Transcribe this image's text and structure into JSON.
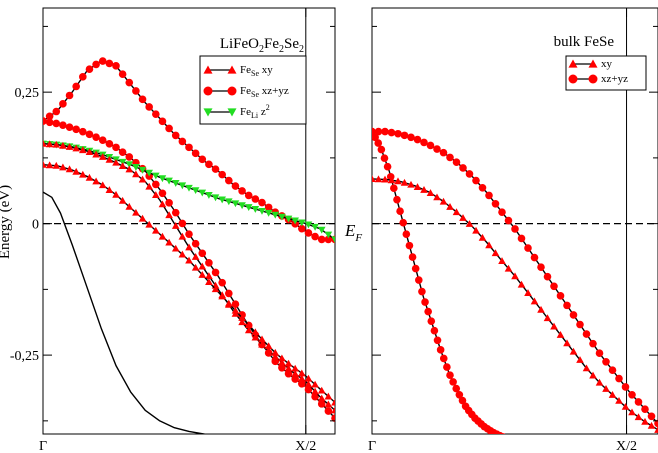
{
  "chart_data": [
    {
      "type": "line",
      "title_parts": {
        "main": "LiFeO",
        "s1": "2",
        "mid": "Fe",
        "s2": "2",
        "tail": "Se",
        "s3": "2"
      },
      "ylabel": "Energy (eV)",
      "ylim": [
        -0.4,
        0.41
      ],
      "xlim": [
        0,
        1
      ],
      "x_ticks": [
        {
          "value": 0,
          "label": "Γ"
        },
        {
          "value": 0.9,
          "label": "X/2"
        }
      ],
      "y_ticks": [
        {
          "value": 0.25,
          "label": "0,25"
        },
        {
          "value": 0,
          "label": "0"
        },
        {
          "value": -0.25,
          "label": "-0,25"
        }
      ],
      "vline_x": 0.9,
      "fermi_level": 0,
      "legend_position": "top-right",
      "legend": [
        {
          "base": "Fe",
          "sub": "Se",
          "sup": "",
          "tail": " xy",
          "marker": "triangle",
          "color": "#ff0000"
        },
        {
          "base": "Fe",
          "sub": "Se",
          "sup": "",
          "tail": " xz+yz",
          "marker": "circle",
          "color": "#ff0000"
        },
        {
          "base": "Fe",
          "sub": "Li",
          "sup": "2",
          "tail": " z",
          "marker": "triangle-down",
          "color": "#22dd22"
        }
      ],
      "series": [
        {
          "marker": "circle",
          "color": "#ff0000",
          "points": [
            [
              0,
              0.195
            ],
            [
              0.05,
              0.215
            ],
            [
              0.1,
              0.25
            ],
            [
              0.15,
              0.29
            ],
            [
              0.2,
              0.31
            ],
            [
              0.25,
              0.3
            ],
            [
              0.3,
              0.265
            ],
            [
              0.35,
              0.23
            ],
            [
              0.4,
              0.2
            ],
            [
              0.45,
              0.17
            ],
            [
              0.5,
              0.145
            ],
            [
              0.55,
              0.12
            ],
            [
              0.6,
              0.1
            ],
            [
              0.65,
              0.075
            ],
            [
              0.7,
              0.055
            ],
            [
              0.75,
              0.04
            ],
            [
              0.8,
              0.02
            ],
            [
              0.85,
              0.005
            ],
            [
              0.9,
              -0.015
            ],
            [
              0.95,
              -0.03
            ],
            [
              1.0,
              -0.03
            ]
          ]
        },
        {
          "marker": "circle",
          "color": "#ff0000",
          "points": [
            [
              0,
              0.195
            ],
            [
              0.05,
              0.19
            ],
            [
              0.1,
              0.182
            ],
            [
              0.15,
              0.172
            ],
            [
              0.2,
              0.16
            ],
            [
              0.25,
              0.145
            ],
            [
              0.3,
              0.125
            ],
            [
              0.35,
              0.1
            ],
            [
              0.4,
              0.065
            ],
            [
              0.45,
              0.025
            ],
            [
              0.5,
              -0.02
            ],
            [
              0.55,
              -0.06
            ],
            [
              0.6,
              -0.1
            ],
            [
              0.65,
              -0.145
            ],
            [
              0.7,
              -0.19
            ],
            [
              0.75,
              -0.23
            ],
            [
              0.8,
              -0.265
            ],
            [
              0.85,
              -0.29
            ],
            [
              0.9,
              -0.31
            ],
            [
              0.95,
              -0.34
            ],
            [
              1.0,
              -0.37
            ]
          ]
        },
        {
          "marker": "triangle-down",
          "color": "#22dd22",
          "points": [
            [
              0,
              0.152
            ],
            [
              0.05,
              0.15
            ],
            [
              0.1,
              0.146
            ],
            [
              0.15,
              0.14
            ],
            [
              0.2,
              0.132
            ],
            [
              0.25,
              0.122
            ],
            [
              0.3,
              0.112
            ],
            [
              0.35,
              0.1
            ],
            [
              0.4,
              0.088
            ],
            [
              0.45,
              0.078
            ],
            [
              0.5,
              0.068
            ],
            [
              0.55,
              0.058
            ],
            [
              0.6,
              0.048
            ],
            [
              0.65,
              0.04
            ],
            [
              0.7,
              0.032
            ],
            [
              0.75,
              0.024
            ],
            [
              0.8,
              0.016
            ],
            [
              0.85,
              0.008
            ],
            [
              0.9,
              0.0
            ],
            [
              0.95,
              -0.01
            ],
            [
              1.0,
              -0.03
            ]
          ]
        },
        {
          "marker": "triangle",
          "color": "#ff0000",
          "points": [
            [
              0,
              0.152
            ],
            [
              0.05,
              0.15
            ],
            [
              0.1,
              0.145
            ],
            [
              0.15,
              0.138
            ],
            [
              0.2,
              0.128
            ],
            [
              0.25,
              0.116
            ],
            [
              0.3,
              0.102
            ],
            [
              0.35,
              0.08
            ],
            [
              0.4,
              0.045
            ],
            [
              0.45,
              0.0
            ],
            [
              0.5,
              -0.045
            ],
            [
              0.55,
              -0.085
            ],
            [
              0.6,
              -0.125
            ],
            [
              0.65,
              -0.165
            ],
            [
              0.7,
              -0.2
            ],
            [
              0.75,
              -0.23
            ],
            [
              0.8,
              -0.255
            ],
            [
              0.85,
              -0.28
            ],
            [
              0.9,
              -0.3
            ],
            [
              0.95,
              -0.33
            ],
            [
              1.0,
              -0.355
            ]
          ]
        },
        {
          "marker": "triangle",
          "color": "#ff0000",
          "points": [
            [
              0,
              0.112
            ],
            [
              0.05,
              0.11
            ],
            [
              0.1,
              0.102
            ],
            [
              0.15,
              0.09
            ],
            [
              0.2,
              0.075
            ],
            [
              0.25,
              0.055
            ],
            [
              0.3,
              0.03
            ],
            [
              0.35,
              0.005
            ],
            [
              0.4,
              -0.02
            ],
            [
              0.45,
              -0.045
            ],
            [
              0.5,
              -0.07
            ],
            [
              0.55,
              -0.1
            ],
            [
              0.6,
              -0.13
            ],
            [
              0.65,
              -0.16
            ],
            [
              0.7,
              -0.19
            ],
            [
              0.75,
              -0.22
            ],
            [
              0.8,
              -0.248
            ],
            [
              0.85,
              -0.27
            ],
            [
              0.9,
              -0.29
            ],
            [
              0.95,
              -0.315
            ],
            [
              1.0,
              -0.34
            ]
          ]
        },
        {
          "marker": "none",
          "color": "#000000",
          "points": [
            [
              0,
              0.06
            ],
            [
              0.03,
              0.05
            ],
            [
              0.06,
              0.02
            ],
            [
              0.1,
              -0.04
            ],
            [
              0.15,
              -0.12
            ],
            [
              0.2,
              -0.2
            ],
            [
              0.25,
              -0.27
            ],
            [
              0.3,
              -0.32
            ],
            [
              0.35,
              -0.355
            ],
            [
              0.4,
              -0.375
            ],
            [
              0.45,
              -0.388
            ],
            [
              0.5,
              -0.395
            ],
            [
              0.55,
              -0.4
            ],
            [
              0.6,
              -0.405
            ],
            [
              0.65,
              -0.41
            ]
          ]
        }
      ]
    },
    {
      "type": "line",
      "title": "bulk FeSe",
      "ylim": [
        -0.4,
        0.41
      ],
      "xlim": [
        0,
        1
      ],
      "x_ticks": [
        {
          "value": 0,
          "label": "Γ"
        },
        {
          "value": 0.89,
          "label": "X/2"
        }
      ],
      "vline_x": 0.89,
      "fermi_level": 0,
      "fermi_label": "E",
      "fermi_label_sub": "F",
      "legend_position": "top-right",
      "legend": [
        {
          "base": "xy",
          "sub": "",
          "sup": "",
          "tail": "",
          "marker": "triangle",
          "color": "#ff0000"
        },
        {
          "base": "xz+yz",
          "sub": "",
          "sup": "",
          "tail": "",
          "marker": "circle",
          "color": "#ff0000"
        }
      ],
      "series": [
        {
          "marker": "circle",
          "color": "#ff0000",
          "points": [
            [
              0,
              0.175
            ],
            [
              0.05,
              0.175
            ],
            [
              0.1,
              0.17
            ],
            [
              0.15,
              0.162
            ],
            [
              0.2,
              0.15
            ],
            [
              0.25,
              0.135
            ],
            [
              0.3,
              0.115
            ],
            [
              0.35,
              0.09
            ],
            [
              0.4,
              0.06
            ],
            [
              0.45,
              0.025
            ],
            [
              0.5,
              -0.01
            ],
            [
              0.55,
              -0.05
            ],
            [
              0.6,
              -0.09
            ],
            [
              0.65,
              -0.13
            ],
            [
              0.7,
              -0.17
            ],
            [
              0.75,
              -0.21
            ],
            [
              0.8,
              -0.25
            ],
            [
              0.85,
              -0.285
            ],
            [
              0.9,
              -0.32
            ],
            [
              0.95,
              -0.35
            ],
            [
              1.0,
              -0.38
            ]
          ]
        },
        {
          "marker": "circle",
          "color": "#ff0000",
          "points": [
            [
              0,
              0.175
            ],
            [
              0.03,
              0.145
            ],
            [
              0.06,
              0.1
            ],
            [
              0.09,
              0.04
            ],
            [
              0.12,
              -0.02
            ],
            [
              0.15,
              -0.08
            ],
            [
              0.18,
              -0.14
            ],
            [
              0.21,
              -0.19
            ],
            [
              0.24,
              -0.24
            ],
            [
              0.27,
              -0.285
            ],
            [
              0.3,
              -0.32
            ],
            [
              0.33,
              -0.35
            ],
            [
              0.36,
              -0.37
            ],
            [
              0.39,
              -0.385
            ],
            [
              0.42,
              -0.396
            ],
            [
              0.45,
              -0.404
            ],
            [
              0.48,
              -0.41
            ]
          ]
        },
        {
          "marker": "triangle",
          "color": "#ff0000",
          "points": [
            [
              0,
              0.085
            ],
            [
              0.05,
              0.084
            ],
            [
              0.1,
              0.08
            ],
            [
              0.15,
              0.072
            ],
            [
              0.2,
              0.06
            ],
            [
              0.25,
              0.042
            ],
            [
              0.3,
              0.02
            ],
            [
              0.35,
              -0.005
            ],
            [
              0.4,
              -0.035
            ],
            [
              0.45,
              -0.068
            ],
            [
              0.5,
              -0.1
            ],
            [
              0.55,
              -0.135
            ],
            [
              0.6,
              -0.17
            ],
            [
              0.65,
              -0.205
            ],
            [
              0.7,
              -0.24
            ],
            [
              0.75,
              -0.275
            ],
            [
              0.8,
              -0.305
            ],
            [
              0.85,
              -0.33
            ],
            [
              0.9,
              -0.355
            ],
            [
              0.95,
              -0.375
            ],
            [
              1.0,
              -0.392
            ]
          ]
        }
      ]
    }
  ]
}
